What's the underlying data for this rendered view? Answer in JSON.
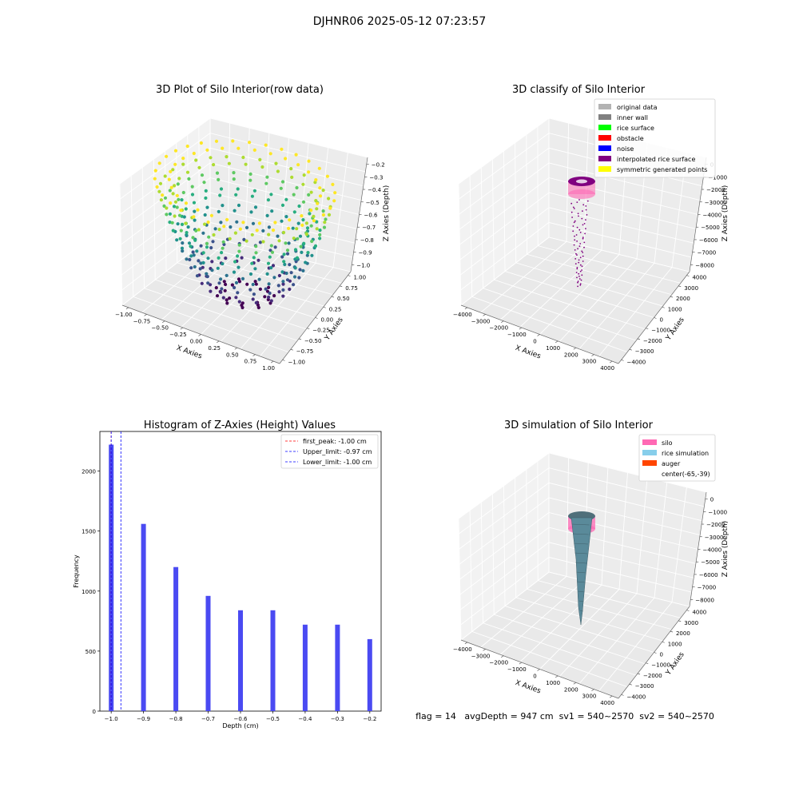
{
  "figure": {
    "suptitle": "DJHNR06 2025-05-12 07:23:57",
    "footer": "flag = 14   avgDepth = 947 cm  sv1 = 540~2570  sv2 = 540~2570"
  },
  "colors": {
    "pane": "#f2f2f2",
    "grid": "#d8d8d8",
    "hist_bar": "#4a4af2",
    "peak_line": "#ff0000",
    "limit_line": "#0000ff",
    "silo": "#ff69b4",
    "rice": "#5a8a9a",
    "auger": "#ff4500",
    "purple": "#800080"
  },
  "chart_data": [
    {
      "type": "scatter",
      "title": "3D Plot of Silo Interior(row data)",
      "xlabel": "X Axies",
      "ylabel": "Y Axies",
      "zlabel": "Z Axies (Depth)",
      "xticks": [
        "−1.00",
        "−0.75",
        "−0.50",
        "−0.25",
        "0.00",
        "0.25",
        "0.50",
        "0.75",
        "1.00"
      ],
      "yticks": [
        "−1.00",
        "−0.75",
        "−0.50",
        "−0.25",
        "0.00",
        "0.25",
        "0.50",
        "0.75",
        "1.00"
      ],
      "zticks": [
        "−0.2",
        "−0.3",
        "−0.4",
        "−0.5",
        "−0.6",
        "−0.7",
        "−0.8",
        "−0.9",
        "−1.0"
      ],
      "xlim": [
        -1,
        1
      ],
      "ylim": [
        -1,
        1
      ],
      "zlim": [
        -1.05,
        -0.15
      ],
      "z_levels": [
        -1.0,
        -0.9,
        -0.8,
        -0.7,
        -0.6,
        -0.5,
        -0.4,
        -0.3,
        -0.2
      ],
      "colormap": "viridis"
    },
    {
      "type": "scatter",
      "title": "3D classify of Silo Interior",
      "xlabel": "X Axies",
      "ylabel": "Y Axies",
      "zlabel": "Z Axies (Depth)",
      "xticks": [
        "−4000",
        "−3000",
        "−2000",
        "−1000",
        "0",
        "1000",
        "2000",
        "3000",
        "4000"
      ],
      "yticks": [
        "−4000",
        "−3000",
        "−2000",
        "−1000",
        "0",
        "1000",
        "2000",
        "3000",
        "4000"
      ],
      "zticks": [
        "0",
        "−1000",
        "−2000",
        "−3000",
        "−4000",
        "−5000",
        "−6000",
        "−7000",
        "−8000"
      ],
      "legend": [
        {
          "label": "original data",
          "color": "#b3b3b3"
        },
        {
          "label": "inner wall",
          "color": "#808080"
        },
        {
          "label": "rice surface",
          "color": "#00ff00"
        },
        {
          "label": "obstacle",
          "color": "#ff0000"
        },
        {
          "label": "noise",
          "color": "#0000ff"
        },
        {
          "label": "interpolated rice surface",
          "color": "#800080"
        },
        {
          "label": "symmetric generated points",
          "color": "#ffff00"
        }
      ]
    },
    {
      "type": "bar",
      "title": "Histogram of Z-Axies (Height) Values",
      "xlabel": "Depth (cm)",
      "ylabel": "Frequency",
      "x": [
        -1.0,
        -0.9,
        -0.8,
        -0.7,
        -0.6,
        -0.5,
        -0.4,
        -0.3,
        -0.2
      ],
      "values": [
        2220,
        1560,
        1200,
        960,
        840,
        840,
        720,
        720,
        600
      ],
      "xlim": [
        -1.035,
        -0.165
      ],
      "ylim": [
        0,
        2330
      ],
      "xticks": [
        "−1.0",
        "−0.9",
        "−0.8",
        "−0.7",
        "−0.6",
        "−0.5",
        "−0.4",
        "−0.3",
        "−0.2"
      ],
      "xtick_values": [
        -1.0,
        -0.9,
        -0.8,
        -0.7,
        -0.6,
        -0.5,
        -0.4,
        -0.3,
        -0.2
      ],
      "yticks": [
        "0",
        "500",
        "1000",
        "1500",
        "2000"
      ],
      "ytick_values": [
        0,
        500,
        1000,
        1500,
        2000
      ],
      "vlines": [
        {
          "x": -1.0,
          "label": "first_peak: -1.00 cm",
          "color": "#ff0000"
        },
        {
          "x": -0.97,
          "label": "Upper_limit: -0.97 cm",
          "color": "#0000ff"
        },
        {
          "x": -1.0,
          "label": "Lower_limit: -1.00 cm",
          "color": "#0000ff"
        }
      ]
    },
    {
      "type": "area",
      "title": "3D simulation of Silo Interior",
      "xlabel": "X Axies",
      "ylabel": "Y Axies",
      "zlabel": "Z Axies (Depth)",
      "xticks": [
        "−4000",
        "−3000",
        "−2000",
        "−1000",
        "0",
        "1000",
        "2000",
        "3000",
        "4000"
      ],
      "yticks": [
        "−4000",
        "−3000",
        "−2000",
        "−1000",
        "0",
        "1000",
        "2000",
        "3000",
        "4000"
      ],
      "zticks": [
        "0",
        "−1000",
        "−2000",
        "−3000",
        "−4000",
        "−5000",
        "−6000",
        "−7000",
        "−8000"
      ],
      "legend": [
        {
          "label": "silo",
          "color": "#ff69b4"
        },
        {
          "label": "rice simulation",
          "color": "#87ceeb"
        },
        {
          "label": "auger",
          "color": "#ff4500"
        },
        {
          "label": "center(-65,-39)",
          "color": ""
        }
      ]
    }
  ]
}
